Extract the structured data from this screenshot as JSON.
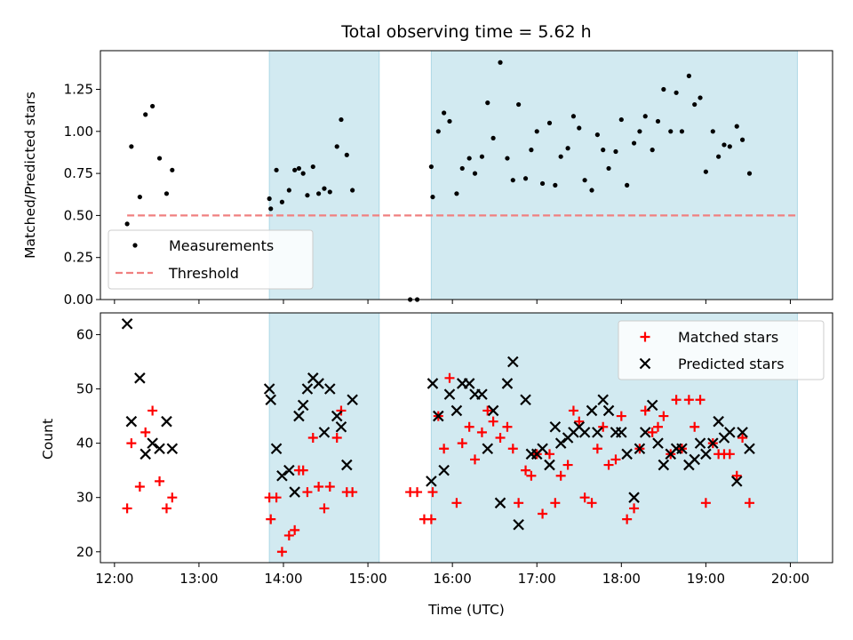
{
  "chart_data": [
    {
      "type": "scatter",
      "title": "Total observing time = 5.62 h",
      "ylabel": "Matched/Predicted stars",
      "xlabel": "",
      "xlim": [
        "11:50",
        "20:30"
      ],
      "ylim": [
        0,
        1.48
      ],
      "yticks": [
        0.0,
        0.25,
        0.5,
        0.75,
        1.0,
        1.25
      ],
      "ytick_labels": [
        "0.00",
        "0.25",
        "0.50",
        "0.75",
        "1.00",
        "1.25"
      ],
      "shaded_intervals": [
        [
          "13:50",
          "15:08"
        ],
        [
          "15:45",
          "20:05"
        ]
      ],
      "shade_color": "#add8e6",
      "legend_position": "lower-left",
      "series": [
        {
          "name": "Measurements",
          "color": "#000000",
          "marker": "dot",
          "points": [
            [
              "12:09",
              0.45
            ],
            [
              "12:12",
              0.91
            ],
            [
              "12:18",
              0.61
            ],
            [
              "12:22",
              1.1
            ],
            [
              "12:27",
              1.15
            ],
            [
              "12:32",
              0.84
            ],
            [
              "12:37",
              0.63
            ],
            [
              "12:41",
              0.77
            ],
            [
              "13:50",
              0.6
            ],
            [
              "13:51",
              0.54
            ],
            [
              "13:55",
              0.77
            ],
            [
              "13:59",
              0.58
            ],
            [
              "14:04",
              0.65
            ],
            [
              "14:08",
              0.77
            ],
            [
              "14:11",
              0.78
            ],
            [
              "14:14",
              0.75
            ],
            [
              "14:17",
              0.62
            ],
            [
              "14:21",
              0.79
            ],
            [
              "14:25",
              0.63
            ],
            [
              "14:29",
              0.66
            ],
            [
              "14:33",
              0.64
            ],
            [
              "14:38",
              0.91
            ],
            [
              "14:41",
              1.07
            ],
            [
              "14:45",
              0.86
            ],
            [
              "14:49",
              0.65
            ],
            [
              "15:30",
              0.0
            ],
            [
              "15:35",
              0.0
            ],
            [
              "15:45",
              0.79
            ],
            [
              "15:46",
              0.61
            ],
            [
              "15:50",
              1.0
            ],
            [
              "15:54",
              1.11
            ],
            [
              "15:58",
              1.06
            ],
            [
              "16:03",
              0.63
            ],
            [
              "16:07",
              0.78
            ],
            [
              "16:12",
              0.84
            ],
            [
              "16:16",
              0.75
            ],
            [
              "16:21",
              0.85
            ],
            [
              "16:25",
              1.17
            ],
            [
              "16:29",
              0.96
            ],
            [
              "16:34",
              1.41
            ],
            [
              "16:39",
              0.84
            ],
            [
              "16:43",
              0.71
            ],
            [
              "16:47",
              1.16
            ],
            [
              "16:52",
              0.72
            ],
            [
              "16:56",
              0.89
            ],
            [
              "17:00",
              1.0
            ],
            [
              "17:04",
              0.69
            ],
            [
              "17:09",
              1.05
            ],
            [
              "17:13",
              0.68
            ],
            [
              "17:17",
              0.85
            ],
            [
              "17:22",
              0.9
            ],
            [
              "17:26",
              1.09
            ],
            [
              "17:30",
              1.02
            ],
            [
              "17:34",
              0.71
            ],
            [
              "17:39",
              0.65
            ],
            [
              "17:43",
              0.98
            ],
            [
              "17:47",
              0.89
            ],
            [
              "17:51",
              0.78
            ],
            [
              "17:56",
              0.88
            ],
            [
              "18:00",
              1.07
            ],
            [
              "18:04",
              0.68
            ],
            [
              "18:09",
              0.93
            ],
            [
              "18:13",
              1.0
            ],
            [
              "18:17",
              1.09
            ],
            [
              "18:22",
              0.89
            ],
            [
              "18:26",
              1.06
            ],
            [
              "18:30",
              1.25
            ],
            [
              "18:35",
              1.0
            ],
            [
              "18:39",
              1.23
            ],
            [
              "18:43",
              1.0
            ],
            [
              "18:48",
              1.33
            ],
            [
              "18:52",
              1.16
            ],
            [
              "18:56",
              1.2
            ],
            [
              "19:00",
              0.76
            ],
            [
              "19:05",
              1.0
            ],
            [
              "19:09",
              0.85
            ],
            [
              "19:13",
              0.92
            ],
            [
              "19:17",
              0.91
            ],
            [
              "19:22",
              1.03
            ],
            [
              "19:26",
              0.95
            ],
            [
              "19:31",
              0.75
            ]
          ]
        },
        {
          "name": "Threshold",
          "color": "#f08080",
          "style": "dashed",
          "points": [
            [
              "12:09",
              0.5
            ],
            [
              "20:05",
              0.5
            ]
          ]
        }
      ]
    },
    {
      "type": "scatter",
      "title": "",
      "xlabel": "Time (UTC)",
      "ylabel": "Count",
      "xlim": [
        "11:50",
        "20:30"
      ],
      "ylim": [
        18,
        64
      ],
      "yticks": [
        20,
        30,
        40,
        50,
        60
      ],
      "ytick_labels": [
        "20",
        "30",
        "40",
        "50",
        "60"
      ],
      "xticks": [
        "12:00",
        "13:00",
        "14:00",
        "15:00",
        "16:00",
        "17:00",
        "18:00",
        "19:00",
        "20:00"
      ],
      "shaded_intervals": [
        [
          "13:50",
          "15:08"
        ],
        [
          "15:45",
          "20:05"
        ]
      ],
      "shade_color": "#add8e6",
      "legend_position": "upper-right",
      "series": [
        {
          "name": "Matched stars",
          "color": "#ff0000",
          "marker": "plus",
          "points": [
            [
              "12:09",
              28
            ],
            [
              "12:12",
              40
            ],
            [
              "12:18",
              32
            ],
            [
              "12:22",
              42
            ],
            [
              "12:27",
              46
            ],
            [
              "12:32",
              33
            ],
            [
              "12:37",
              28
            ],
            [
              "12:41",
              30
            ],
            [
              "13:50",
              30
            ],
            [
              "13:51",
              26
            ],
            [
              "13:55",
              30
            ],
            [
              "13:59",
              20
            ],
            [
              "14:04",
              23
            ],
            [
              "14:08",
              24
            ],
            [
              "14:11",
              35
            ],
            [
              "14:14",
              35
            ],
            [
              "14:17",
              31
            ],
            [
              "14:21",
              41
            ],
            [
              "14:25",
              32
            ],
            [
              "14:29",
              28
            ],
            [
              "14:33",
              32
            ],
            [
              "14:38",
              41
            ],
            [
              "14:41",
              46
            ],
            [
              "14:45",
              31
            ],
            [
              "14:49",
              31
            ],
            [
              "15:30",
              31
            ],
            [
              "15:35",
              31
            ],
            [
              "15:40",
              26
            ],
            [
              "15:45",
              26
            ],
            [
              "15:46",
              31
            ],
            [
              "15:50",
              45
            ],
            [
              "15:54",
              39
            ],
            [
              "15:58",
              52
            ],
            [
              "16:03",
              29
            ],
            [
              "16:07",
              40
            ],
            [
              "16:12",
              43
            ],
            [
              "16:16",
              37
            ],
            [
              "16:21",
              42
            ],
            [
              "16:25",
              46
            ],
            [
              "16:29",
              44
            ],
            [
              "16:34",
              41
            ],
            [
              "16:39",
              43
            ],
            [
              "16:43",
              39
            ],
            [
              "16:47",
              29
            ],
            [
              "16:52",
              35
            ],
            [
              "16:56",
              34
            ],
            [
              "17:00",
              38
            ],
            [
              "17:04",
              27
            ],
            [
              "17:09",
              38
            ],
            [
              "17:13",
              29
            ],
            [
              "17:17",
              34
            ],
            [
              "17:22",
              36
            ],
            [
              "17:26",
              46
            ],
            [
              "17:30",
              44
            ],
            [
              "17:34",
              30
            ],
            [
              "17:39",
              29
            ],
            [
              "17:43",
              39
            ],
            [
              "17:47",
              43
            ],
            [
              "17:51",
              36
            ],
            [
              "17:56",
              37
            ],
            [
              "18:00",
              45
            ],
            [
              "18:04",
              26
            ],
            [
              "18:09",
              28
            ],
            [
              "18:13",
              39
            ],
            [
              "18:17",
              46
            ],
            [
              "18:22",
              42
            ],
            [
              "18:26",
              43
            ],
            [
              "18:30",
              45
            ],
            [
              "18:35",
              38
            ],
            [
              "18:39",
              48
            ],
            [
              "18:43",
              39
            ],
            [
              "18:48",
              48
            ],
            [
              "18:52",
              43
            ],
            [
              "18:56",
              48
            ],
            [
              "19:00",
              29
            ],
            [
              "19:05",
              40
            ],
            [
              "19:09",
              38
            ],
            [
              "19:13",
              38
            ],
            [
              "19:17",
              38
            ],
            [
              "19:22",
              34
            ],
            [
              "19:26",
              41
            ],
            [
              "19:31",
              29
            ]
          ]
        },
        {
          "name": "Predicted stars",
          "color": "#000000",
          "marker": "x",
          "points": [
            [
              "12:09",
              62
            ],
            [
              "12:12",
              44
            ],
            [
              "12:18",
              52
            ],
            [
              "12:22",
              38
            ],
            [
              "12:27",
              40
            ],
            [
              "12:32",
              39
            ],
            [
              "12:37",
              44
            ],
            [
              "12:41",
              39
            ],
            [
              "13:50",
              50
            ],
            [
              "13:51",
              48
            ],
            [
              "13:55",
              39
            ],
            [
              "13:59",
              34
            ],
            [
              "14:04",
              35
            ],
            [
              "14:08",
              31
            ],
            [
              "14:11",
              45
            ],
            [
              "14:14",
              47
            ],
            [
              "14:17",
              50
            ],
            [
              "14:21",
              52
            ],
            [
              "14:25",
              51
            ],
            [
              "14:29",
              42
            ],
            [
              "14:33",
              50
            ],
            [
              "14:38",
              45
            ],
            [
              "14:41",
              43
            ],
            [
              "14:45",
              36
            ],
            [
              "14:49",
              48
            ],
            [
              "15:45",
              33
            ],
            [
              "15:46",
              51
            ],
            [
              "15:50",
              45
            ],
            [
              "15:54",
              35
            ],
            [
              "15:58",
              49
            ],
            [
              "16:03",
              46
            ],
            [
              "16:07",
              51
            ],
            [
              "16:12",
              51
            ],
            [
              "16:16",
              49
            ],
            [
              "16:21",
              49
            ],
            [
              "16:25",
              39
            ],
            [
              "16:29",
              46
            ],
            [
              "16:34",
              29
            ],
            [
              "16:39",
              51
            ],
            [
              "16:43",
              55
            ],
            [
              "16:47",
              25
            ],
            [
              "16:52",
              48
            ],
            [
              "16:56",
              38
            ],
            [
              "17:00",
              38
            ],
            [
              "17:04",
              39
            ],
            [
              "17:09",
              36
            ],
            [
              "17:13",
              43
            ],
            [
              "17:17",
              40
            ],
            [
              "17:22",
              41
            ],
            [
              "17:26",
              42
            ],
            [
              "17:30",
              43
            ],
            [
              "17:34",
              42
            ],
            [
              "17:39",
              46
            ],
            [
              "17:43",
              42
            ],
            [
              "17:47",
              48
            ],
            [
              "17:51",
              46
            ],
            [
              "17:56",
              42
            ],
            [
              "18:00",
              42
            ],
            [
              "18:04",
              38
            ],
            [
              "18:09",
              30
            ],
            [
              "18:13",
              39
            ],
            [
              "18:17",
              42
            ],
            [
              "18:22",
              47
            ],
            [
              "18:26",
              40
            ],
            [
              "18:30",
              36
            ],
            [
              "18:35",
              38
            ],
            [
              "18:39",
              39
            ],
            [
              "18:43",
              39
            ],
            [
              "18:48",
              36
            ],
            [
              "18:52",
              37
            ],
            [
              "18:56",
              40
            ],
            [
              "19:00",
              38
            ],
            [
              "19:05",
              40
            ],
            [
              "19:09",
              44
            ],
            [
              "19:13",
              41
            ],
            [
              "19:17",
              42
            ],
            [
              "19:22",
              33
            ],
            [
              "19:26",
              42
            ],
            [
              "19:31",
              39
            ]
          ]
        }
      ]
    }
  ]
}
